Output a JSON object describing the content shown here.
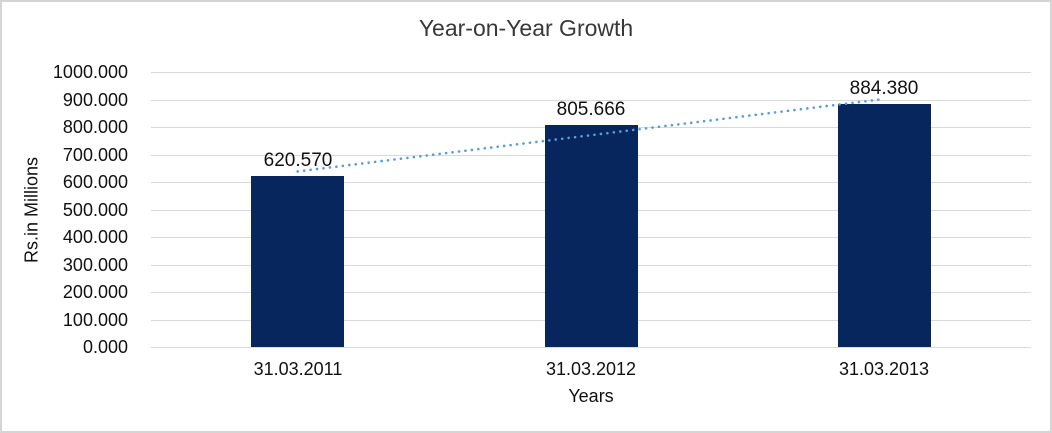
{
  "chart_data": {
    "type": "bar",
    "title": "Year-on-Year Growth",
    "xlabel": "Years",
    "ylabel": "Rs.in Millions",
    "categories": [
      "31.03.2011",
      "31.03.2012",
      "31.03.2013"
    ],
    "values": [
      620.57,
      805.666,
      884.38
    ],
    "data_labels": [
      "620.570",
      "805.666",
      "884.380"
    ],
    "ylim": [
      0,
      1000
    ],
    "ytick_step": 100,
    "ytick_labels": [
      "0.000",
      "100.000",
      "200.000",
      "300.000",
      "400.000",
      "500.000",
      "600.000",
      "700.000",
      "800.000",
      "900.000",
      "1000.000"
    ],
    "grid": true,
    "legend_position": "none",
    "bar_color": "#08265e",
    "trendline": {
      "type": "linear",
      "style": "dotted",
      "color": "#5b9bd5"
    },
    "gridline_color": "#d9d9d9",
    "frame_color": "#d5d5d5"
  }
}
